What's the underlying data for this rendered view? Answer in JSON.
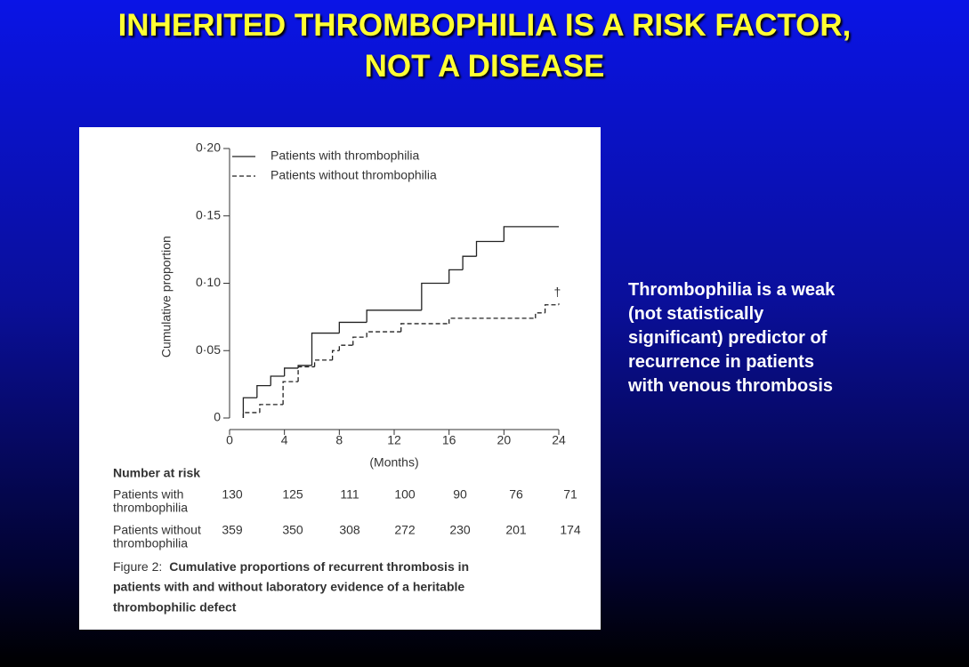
{
  "title_lines": [
    "INHERITED THROMBOPHILIA IS A RISK FACTOR,",
    "NOT A DISEASE"
  ],
  "side_text": [
    "Thrombophilia is a weak",
    "(not statistically",
    "significant) predictor of",
    "recurrence in patients",
    "with venous thrombosis"
  ],
  "chart_data": {
    "type": "step",
    "xlabel": "(Months)",
    "ylabel": "Cumulative proportion",
    "xlim": [
      0,
      24
    ],
    "xticks": [
      0,
      4,
      8,
      12,
      16,
      20,
      24
    ],
    "ylim": [
      0,
      0.2
    ],
    "yticks": [
      0,
      {
        "value": 0.05,
        "label": "0·05"
      },
      {
        "value": 0.1,
        "label": "0·10"
      },
      {
        "value": 0.15,
        "label": "0·15"
      },
      {
        "value": 0.2,
        "label": "0·20"
      }
    ],
    "legend": "top-left",
    "series": [
      {
        "name": "Patients with thrombophilia",
        "color": "#222222",
        "line_style": "solid",
        "x": [
          1,
          2,
          3,
          4,
          5,
          6,
          8,
          10,
          14,
          16,
          17,
          18,
          20,
          24
        ],
        "values": [
          0.015,
          0.024,
          0.031,
          0.037,
          0.039,
          0.063,
          0.071,
          0.08,
          0.1,
          0.11,
          0.12,
          0.131,
          0.142,
          0.142
        ]
      },
      {
        "name": "Patients without thrombophilia",
        "color": "#222222",
        "line_style": "dashed",
        "x": [
          1,
          2.2,
          3.9,
          5,
          6.2,
          7.5,
          8,
          9,
          10,
          12.5,
          16,
          22.3,
          23,
          24
        ],
        "values": [
          0.004,
          0.01,
          0.027,
          0.038,
          0.043,
          0.05,
          0.054,
          0.06,
          0.064,
          0.07,
          0.074,
          0.078,
          0.084,
          0.085
        ]
      }
    ],
    "annotations": [
      {
        "text": "†",
        "x": 23.9,
        "y": 0.093
      }
    ]
  },
  "risk_table": {
    "title": "Number at risk",
    "rows": [
      {
        "label": [
          "Patients with",
          "thrombophilia"
        ],
        "values": [
          130,
          125,
          111,
          100,
          90,
          76,
          71
        ]
      },
      {
        "label": [
          "Patients without",
          "thrombophilia"
        ],
        "values": [
          359,
          350,
          308,
          272,
          230,
          201,
          174
        ]
      }
    ]
  },
  "caption": {
    "label": "Figure 2:",
    "lines": [
      "Cumulative proportions of recurrent thrombosis in",
      "patients with and without laboratory evidence of a heritable",
      "thrombophilic defect"
    ]
  }
}
